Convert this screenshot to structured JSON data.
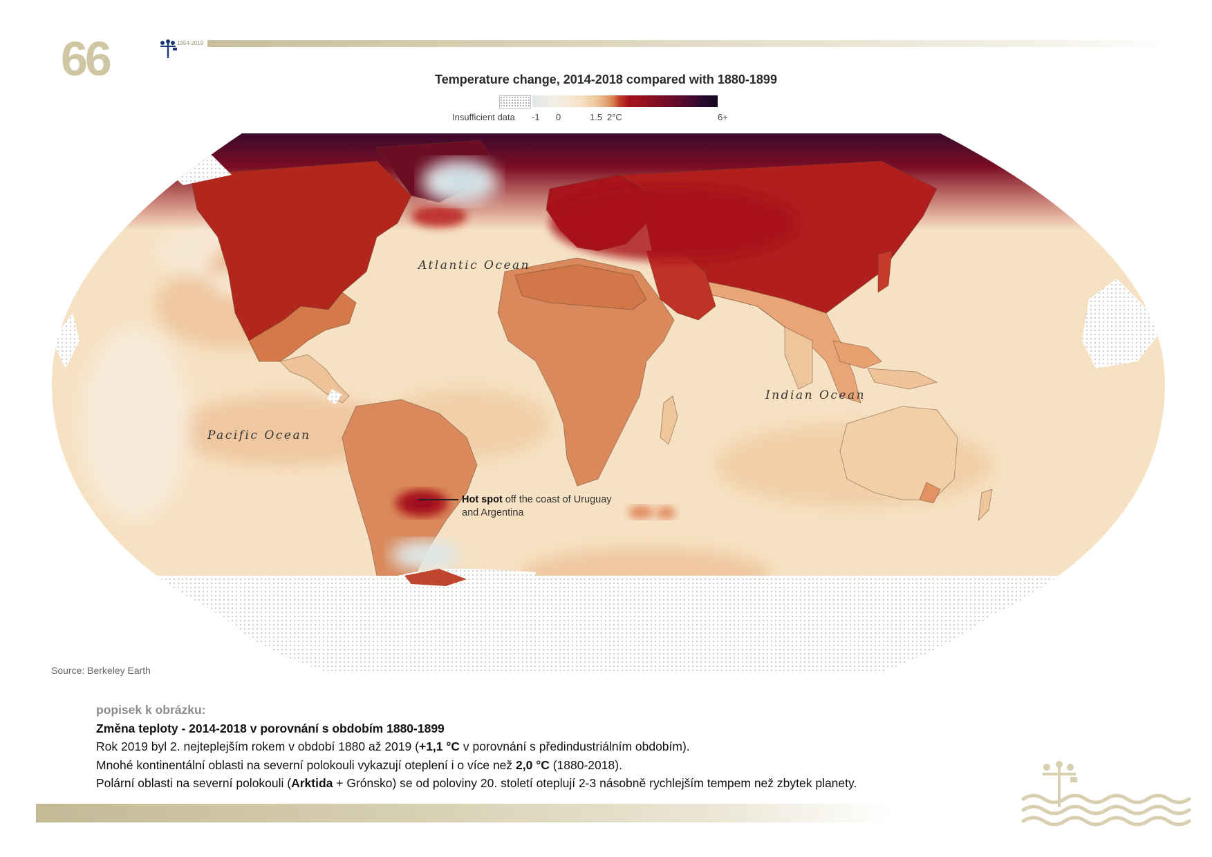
{
  "header": {
    "logo_digits": "66",
    "logo_years": "1954-2019",
    "logo_colors": {
      "gold": "#cfc6a4",
      "bar": "#d2c9a8"
    }
  },
  "map": {
    "title": "Temperature change, 2014-2018 compared with 1880-1899",
    "legend": {
      "insufficient_label": "Insufficient data",
      "ticks": [
        "-1",
        "0",
        "1.5",
        "2°C",
        "6+"
      ],
      "colors": {
        "cool": "#dfe6e8",
        "neutral": "#f3efe6",
        "warm": "#efc89e",
        "two_degrees": "#a8131c",
        "extreme": "#120820"
      }
    },
    "ocean_labels": {
      "atlantic": "Atlantic Ocean",
      "pacific": "Pacific Ocean",
      "indian": "Indian Ocean"
    },
    "annotation": {
      "bold": "Hot spot",
      "rest_line1": " off the coast of Uruguay",
      "line2": "and Argentina"
    },
    "source": "Source: Berkeley Earth"
  },
  "caption": {
    "label": "popisek k obrázku:",
    "title": "Změna teploty - 2014-2018 v porovnání s obdobím 1880-1899",
    "line1": {
      "a": "Rok 2019 byl 2. nejteplejším rokem v období 1880 až 2019 (",
      "b": "+1,1 °C",
      "c": " v porovnání s předindustriálním obdobím)."
    },
    "line2": {
      "a": "Mnohé kontinentální oblasti na severní polokouli vykazují oteplení i o více než ",
      "b": "2,0 °C",
      "c": " (1880-2018)."
    },
    "line3": {
      "a": "Polární oblasti na severní polokouli (",
      "b": "Arktida",
      "c": " + Grónsko) se od poloviny 20. století oteplují 2-3 násobně rychlejším tempem než zbytek planety."
    }
  }
}
